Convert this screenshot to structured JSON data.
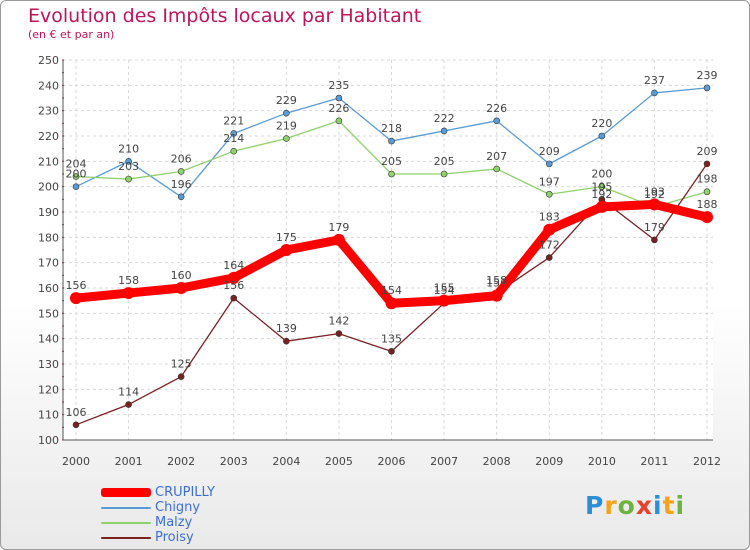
{
  "chart_data": {
    "type": "line",
    "title": "Evolution des Impôts locaux par Habitant",
    "subtitle": "(en € et par an)",
    "xlabel": "",
    "ylabel": "",
    "categories": [
      "2000",
      "2001",
      "2002",
      "2003",
      "2004",
      "2005",
      "2006",
      "2007",
      "2008",
      "2009",
      "2010",
      "2011",
      "2012"
    ],
    "ylim": [
      100,
      250
    ],
    "yticks": [
      "100",
      "110",
      "120",
      "130",
      "140",
      "150",
      "160",
      "170",
      "180",
      "190",
      "200",
      "210",
      "220",
      "230",
      "240",
      "250"
    ],
    "grid": true,
    "legend_position": "bottom-left",
    "series": [
      {
        "name": "CRUPILLY",
        "color": "#ff0000",
        "values": [
          156,
          158,
          160,
          164,
          175,
          179,
          154,
          155,
          157,
          183,
          192,
          193,
          188
        ],
        "labels": [
          "156",
          "158",
          "160",
          "164",
          "175",
          "179",
          "154",
          "155",
          "157",
          "183",
          "192",
          "193",
          "188"
        ]
      },
      {
        "name": "Chigny",
        "color": "#5b9bd5",
        "values": [
          200,
          210,
          196,
          221,
          229,
          235,
          218,
          222,
          226,
          209,
          220,
          237,
          239
        ],
        "labels": [
          "200",
          "210",
          "196",
          "221",
          "229",
          "235",
          "218",
          "222",
          "226",
          "209",
          "220",
          "237",
          "239"
        ]
      },
      {
        "name": "Malzy",
        "color": "#8fd16a",
        "values": [
          204,
          203,
          206,
          214,
          219,
          226,
          205,
          205,
          207,
          197,
          200,
          192,
          198
        ],
        "labels": [
          "204",
          "203",
          "206",
          "214",
          "219",
          "226",
          "205",
          "205",
          "207",
          "197",
          "200",
          "192",
          "198"
        ]
      },
      {
        "name": "Proisy",
        "color": "#7a2222",
        "values": [
          106,
          114,
          125,
          156,
          139,
          142,
          135,
          154,
          158,
          172,
          195,
          179,
          209
        ],
        "labels": [
          "106",
          "114",
          "125",
          "156",
          "139",
          "142",
          "135",
          "154",
          "158",
          "172",
          "195",
          "179",
          "209"
        ]
      }
    ]
  },
  "logo": {
    "text": [
      "P",
      "r",
      "o",
      "x",
      "i",
      "t",
      "i"
    ],
    "colors": [
      "#2a8fd8",
      "#f5a31a",
      "#6db33f",
      "#e8412c",
      "#2a8fd8",
      "#f5a31a",
      "#6db33f"
    ]
  }
}
